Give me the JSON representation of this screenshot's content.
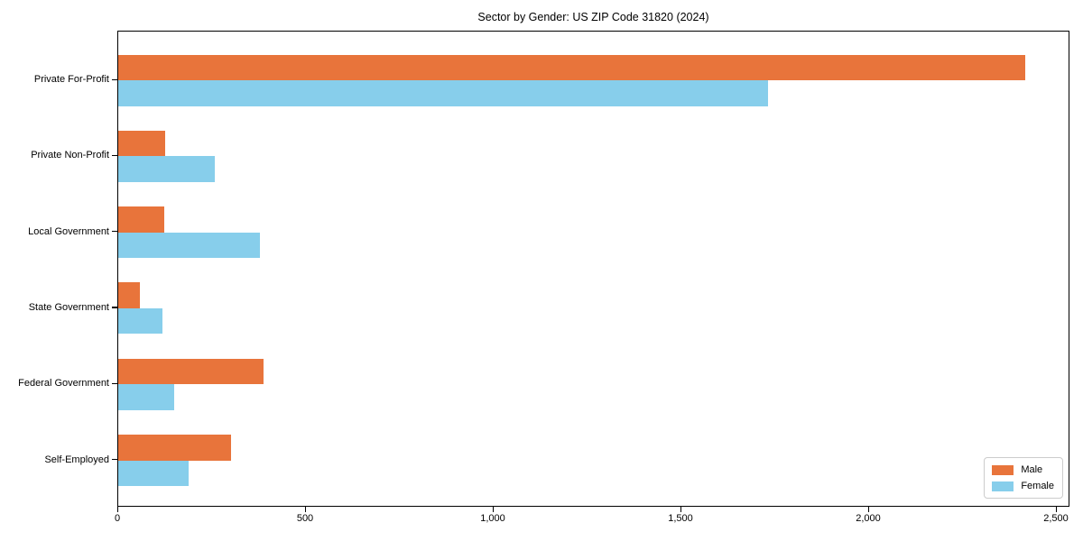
{
  "figure": {
    "background": "#ffffff"
  },
  "chart_data": {
    "type": "bar",
    "orientation": "horizontal",
    "title": "Sector by Gender: US ZIP Code 31820 (2024)",
    "categories": [
      "Private For-Profit",
      "Private Non-Profit",
      "Local Government",
      "State Government",
      "Federal Government",
      "Self-Employed"
    ],
    "series": [
      {
        "name": "Male",
        "color": "#e8743b",
        "values": [
          2415,
          125,
          123,
          58,
          387,
          300
        ]
      },
      {
        "name": "Female",
        "color": "#87ceeb",
        "values": [
          1730,
          257,
          377,
          118,
          149,
          188
        ]
      }
    ],
    "xlabel": "",
    "ylabel": "",
    "xlim": [
      0,
      2536
    ],
    "xticks": [
      0,
      500,
      1000,
      1500,
      2000,
      2500
    ],
    "xtick_labels": [
      "0",
      "500",
      "1,000",
      "1,500",
      "2,000",
      "2,500"
    ],
    "grid": false,
    "legend": {
      "position": "lower right"
    }
  }
}
